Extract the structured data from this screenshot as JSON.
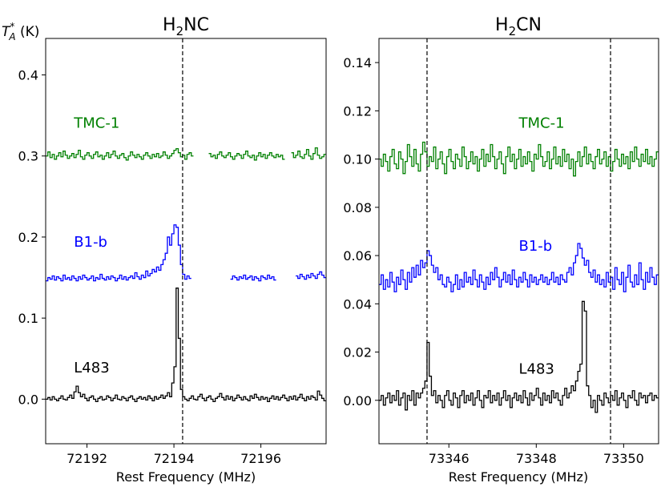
{
  "ylabel": "T*A (K)",
  "xlabel": "Rest Frequency (MHz)",
  "colors": {
    "TMC-1": "#008000",
    "B1-b": "#0000ff",
    "L483": "#000000"
  },
  "panels": [
    {
      "title_main": "H",
      "title_sub": "2",
      "title_rest": "NC",
      "xlim": [
        72191.05,
        72197.5
      ],
      "ylim": [
        -0.055,
        0.445
      ],
      "xticks": [
        "72192",
        "72194",
        "72196"
      ],
      "yticks": [
        "0.0",
        "0.1",
        "0.2",
        "0.3",
        "0.4"
      ],
      "vlines": [
        72194.2
      ],
      "source_labels": [
        {
          "text": "TMC-1",
          "source": "TMC-1",
          "x": 72191.7,
          "y": 0.335
        },
        {
          "text": "B1-b",
          "source": "B1-b",
          "x": 72191.7,
          "y": 0.188
        },
        {
          "text": "L483",
          "source": "L483",
          "x": 72191.7,
          "y": 0.033
        }
      ]
    },
    {
      "title_main": "H",
      "title_sub": "2",
      "title_rest": "CN",
      "xlim": [
        73344.4,
        73350.8
      ],
      "ylim": [
        -0.018,
        0.15
      ],
      "xticks": [
        "73346",
        "73348",
        "73350"
      ],
      "yticks": [
        "0.00",
        "0.02",
        "0.04",
        "0.06",
        "0.08",
        "0.10",
        "0.12",
        "0.14"
      ],
      "vlines": [
        73345.5,
        73349.7
      ],
      "source_labels": [
        {
          "text": "TMC-1",
          "source": "TMC-1",
          "x": 73347.6,
          "y": 0.113
        },
        {
          "text": "B1-b",
          "source": "B1-b",
          "x": 73347.6,
          "y": 0.062
        },
        {
          "text": "L483",
          "source": "L483",
          "x": 73347.6,
          "y": 0.011
        }
      ]
    }
  ],
  "chart_data": [
    {
      "type": "line",
      "title": "H2NC",
      "xlabel": "Rest Frequency (MHz)",
      "ylabel": "T*A (K)",
      "xlim": [
        72191.05,
        72197.5
      ],
      "ylim": [
        -0.055,
        0.445
      ],
      "x_start": 72191.05,
      "x_step": 0.05,
      "series": [
        {
          "name": "TMC-1",
          "segments": [
            [
              0,
              68
            ],
            [
              75,
              110
            ],
            [
              113,
              129
            ]
          ],
          "values": [
            0.3,
            0.305,
            0.298,
            0.302,
            0.296,
            0.3,
            0.304,
            0.299,
            0.306,
            0.301,
            0.297,
            0.3,
            0.303,
            0.298,
            0.302,
            0.307,
            0.299,
            0.296,
            0.301,
            0.304,
            0.3,
            0.297,
            0.302,
            0.305,
            0.299,
            0.301,
            0.296,
            0.3,
            0.304,
            0.298,
            0.302,
            0.306,
            0.3,
            0.297,
            0.301,
            0.303,
            0.298,
            0.295,
            0.3,
            0.305,
            0.301,
            0.298,
            0.302,
            0.299,
            0.296,
            0.301,
            0.304,
            0.3,
            0.297,
            0.302,
            0.299,
            0.303,
            0.298,
            0.3,
            0.305,
            0.301,
            0.297,
            0.3,
            0.303,
            0.307,
            0.309,
            0.304,
            0.299,
            0.301,
            0.296,
            0.302,
            0.304,
            0.3,
            0.298,
            0.301,
            0.3,
            0.3,
            0.3,
            0.3,
            0.3,
            0.303,
            0.299,
            0.301,
            0.297,
            0.302,
            0.305,
            0.3,
            0.298,
            0.301,
            0.304,
            0.299,
            0.296,
            0.3,
            0.303,
            0.301,
            0.297,
            0.302,
            0.306,
            0.3,
            0.298,
            0.301,
            0.295,
            0.3,
            0.304,
            0.299,
            0.302,
            0.297,
            0.301,
            0.304,
            0.3,
            0.298,
            0.302,
            0.299,
            0.301,
            0.296,
            0.3,
            0.3,
            0.3,
            0.304,
            0.298,
            0.301,
            0.306,
            0.299,
            0.297,
            0.302,
            0.308,
            0.3,
            0.296,
            0.303,
            0.31,
            0.301,
            0.297,
            0.299,
            0.302,
            0.3
          ]
        },
        {
          "name": "B1-b",
          "segments": [
            [
              0,
              67
            ],
            [
              85,
              106
            ],
            [
              115,
              129
            ]
          ],
          "values": [
            0.146,
            0.15,
            0.148,
            0.152,
            0.147,
            0.151,
            0.149,
            0.146,
            0.153,
            0.148,
            0.15,
            0.147,
            0.152,
            0.149,
            0.146,
            0.151,
            0.148,
            0.153,
            0.15,
            0.147,
            0.149,
            0.152,
            0.146,
            0.15,
            0.148,
            0.154,
            0.149,
            0.147,
            0.151,
            0.148,
            0.152,
            0.15,
            0.146,
            0.149,
            0.153,
            0.148,
            0.151,
            0.147,
            0.15,
            0.152,
            0.149,
            0.156,
            0.151,
            0.148,
            0.153,
            0.15,
            0.158,
            0.152,
            0.155,
            0.16,
            0.157,
            0.163,
            0.159,
            0.166,
            0.172,
            0.18,
            0.2,
            0.19,
            0.204,
            0.215,
            0.212,
            0.19,
            0.166,
            0.154,
            0.148,
            0.152,
            0.149,
            0.153,
            0.15,
            0.15,
            0.15,
            0.15,
            0.15,
            0.15,
            0.15,
            0.15,
            0.15,
            0.15,
            0.15,
            0.15,
            0.15,
            0.15,
            0.15,
            0.15,
            0.15,
            0.148,
            0.152,
            0.15,
            0.147,
            0.151,
            0.149,
            0.153,
            0.148,
            0.15,
            0.152,
            0.147,
            0.151,
            0.149,
            0.146,
            0.152,
            0.15,
            0.148,
            0.153,
            0.149,
            0.151,
            0.147,
            0.15,
            0.15,
            0.15,
            0.15,
            0.15,
            0.15,
            0.15,
            0.15,
            0.15,
            0.152,
            0.149,
            0.154,
            0.151,
            0.148,
            0.153,
            0.15,
            0.155,
            0.152,
            0.149,
            0.154,
            0.157,
            0.153,
            0.15,
            0.152
          ]
        },
        {
          "name": "L483",
          "segments": [
            [
              0,
              129
            ]
          ],
          "values": [
            0.0,
            0.002,
            -0.001,
            0.003,
            0.0,
            -0.002,
            0.001,
            0.004,
            0.0,
            -0.001,
            0.002,
            0.005,
            0.001,
            0.009,
            0.016,
            0.008,
            0.003,
            0.006,
            0.001,
            -0.002,
            0.002,
            0.004,
            0.0,
            -0.003,
            0.001,
            0.003,
            -0.001,
            0.0,
            0.004,
            0.002,
            -0.002,
            0.001,
            0.005,
            0.0,
            -0.001,
            0.003,
            0.001,
            -0.002,
            0.002,
            0.004,
            0.0,
            -0.003,
            0.001,
            0.003,
            0.0,
            0.002,
            -0.001,
            0.004,
            0.001,
            -0.002,
            0.003,
            0.0,
            0.002,
            0.005,
            0.001,
            0.004,
            0.008,
            0.003,
            0.02,
            0.04,
            0.137,
            0.075,
            0.012,
            0.003,
            0.0,
            -0.002,
            0.001,
            0.004,
            0.0,
            -0.001,
            0.003,
            0.006,
            0.001,
            -0.002,
            0.002,
            0.004,
            0.0,
            -0.003,
            0.001,
            0.003,
            0.007,
            0.002,
            -0.001,
            0.004,
            0.0,
            0.003,
            -0.002,
            0.001,
            0.005,
            0.002,
            -0.001,
            0.003,
            0.0,
            -0.002,
            0.004,
            0.001,
            0.006,
            0.002,
            -0.001,
            0.003,
            0.0,
            0.002,
            -0.003,
            0.001,
            0.004,
            0.0,
            0.003,
            -0.001,
            0.002,
            0.005,
            0.001,
            -0.002,
            0.003,
            0.0,
            0.004,
            -0.001,
            0.002,
            0.006,
            0.001,
            -0.002,
            0.003,
            0.0,
            0.004,
            0.002,
            -0.001,
            0.01,
            0.005,
            0.001,
            -0.002
          ]
        }
      ]
    },
    {
      "type": "line",
      "title": "H2CN",
      "xlabel": "Rest Frequency (MHz)",
      "ylabel": "T*A (K)",
      "xlim": [
        73344.4,
        73350.8
      ],
      "ylim": [
        -0.018,
        0.15
      ],
      "x_start": 73344.4,
      "x_step": 0.05,
      "series": [
        {
          "name": "TMC-1",
          "segments": [
            [
              0,
              128
            ]
          ],
          "values": [
            0.1,
            0.097,
            0.102,
            0.099,
            0.095,
            0.101,
            0.104,
            0.098,
            0.096,
            0.103,
            0.1,
            0.094,
            0.099,
            0.106,
            0.101,
            0.097,
            0.104,
            0.098,
            0.095,
            0.102,
            0.107,
            0.103,
            0.097,
            0.101,
            0.099,
            0.105,
            0.096,
            0.1,
            0.103,
            0.098,
            0.094,
            0.101,
            0.104,
            0.099,
            0.096,
            0.102,
            0.1,
            0.097,
            0.105,
            0.101,
            0.096,
            0.099,
            0.103,
            0.098,
            0.101,
            0.095,
            0.1,
            0.104,
            0.097,
            0.102,
            0.099,
            0.106,
            0.101,
            0.096,
            0.1,
            0.103,
            0.098,
            0.094,
            0.101,
            0.105,
            0.099,
            0.102,
            0.096,
            0.1,
            0.104,
            0.097,
            0.101,
            0.098,
            0.103,
            0.099,
            0.095,
            0.102,
            0.1,
            0.106,
            0.101,
            0.097,
            0.099,
            0.103,
            0.096,
            0.1,
            0.105,
            0.098,
            0.101,
            0.097,
            0.104,
            0.099,
            0.102,
            0.096,
            0.1,
            0.093,
            0.099,
            0.103,
            0.097,
            0.101,
            0.105,
            0.098,
            0.102,
            0.099,
            0.096,
            0.101,
            0.104,
            0.098,
            0.1,
            0.103,
            0.097,
            0.101,
            0.095,
            0.099,
            0.104,
            0.1,
            0.097,
            0.102,
            0.098,
            0.101,
            0.096,
            0.103,
            0.099,
            0.105,
            0.1,
            0.097,
            0.102,
            0.099,
            0.104,
            0.098,
            0.101,
            0.097,
            0.1,
            0.103
          ]
        },
        {
          "name": "B1-b",
          "segments": [
            [
              0,
              128
            ]
          ],
          "values": [
            0.048,
            0.052,
            0.046,
            0.05,
            0.047,
            0.053,
            0.049,
            0.045,
            0.051,
            0.048,
            0.054,
            0.05,
            0.046,
            0.053,
            0.049,
            0.055,
            0.051,
            0.056,
            0.052,
            0.058,
            0.055,
            0.057,
            0.062,
            0.06,
            0.056,
            0.053,
            0.055,
            0.05,
            0.052,
            0.048,
            0.047,
            0.051,
            0.049,
            0.045,
            0.048,
            0.052,
            0.046,
            0.05,
            0.047,
            0.053,
            0.049,
            0.051,
            0.048,
            0.054,
            0.05,
            0.047,
            0.052,
            0.049,
            0.046,
            0.051,
            0.048,
            0.053,
            0.05,
            0.055,
            0.051,
            0.047,
            0.05,
            0.053,
            0.049,
            0.052,
            0.048,
            0.054,
            0.05,
            0.047,
            0.051,
            0.049,
            0.053,
            0.05,
            0.047,
            0.052,
            0.049,
            0.051,
            0.048,
            0.05,
            0.052,
            0.049,
            0.051,
            0.048,
            0.05,
            0.053,
            0.049,
            0.051,
            0.048,
            0.052,
            0.05,
            0.049,
            0.053,
            0.055,
            0.052,
            0.057,
            0.06,
            0.065,
            0.063,
            0.059,
            0.056,
            0.058,
            0.053,
            0.051,
            0.054,
            0.049,
            0.052,
            0.048,
            0.05,
            0.047,
            0.053,
            0.049,
            0.051,
            0.046,
            0.055,
            0.05,
            0.048,
            0.053,
            0.045,
            0.051,
            0.056,
            0.049,
            0.047,
            0.052,
            0.048,
            0.057,
            0.05,
            0.046,
            0.053,
            0.049,
            0.055,
            0.051,
            0.048,
            0.052
          ]
        },
        {
          "name": "L483",
          "segments": [
            [
              0,
              128
            ]
          ],
          "values": [
            0.0,
            0.002,
            -0.002,
            0.001,
            0.003,
            -0.001,
            0.002,
            0.0,
            0.004,
            -0.002,
            0.001,
            0.003,
            -0.004,
            0.002,
            0.0,
            0.004,
            -0.002,
            0.003,
            0.001,
            0.003,
            0.005,
            0.008,
            0.024,
            0.01,
            0.002,
            0.004,
            -0.001,
            0.002,
            0.0,
            -0.003,
            0.002,
            0.004,
            0.0,
            -0.002,
            0.003,
            0.001,
            -0.003,
            0.002,
            0.004,
            -0.001,
            0.002,
            0.0,
            0.003,
            -0.002,
            0.001,
            0.004,
            0.0,
            -0.003,
            0.002,
            0.001,
            0.004,
            -0.001,
            0.002,
            0.0,
            0.003,
            -0.002,
            0.001,
            0.004,
            0.0,
            0.002,
            -0.003,
            0.001,
            0.003,
            0.0,
            0.002,
            -0.001,
            0.004,
            0.001,
            -0.002,
            0.003,
            0.0,
            0.002,
            0.005,
            0.001,
            -0.002,
            0.003,
            0.0,
            0.002,
            -0.001,
            0.004,
            0.001,
            0.003,
            0.0,
            -0.002,
            0.002,
            0.005,
            0.001,
            0.003,
            0.006,
            0.004,
            0.008,
            0.012,
            0.015,
            0.041,
            0.037,
            0.006,
            0.002,
            -0.003,
            0.0,
            -0.005,
            0.002,
            0.0,
            -0.002,
            0.003,
            0.001,
            -0.001,
            0.002,
            0.0,
            0.004,
            -0.002,
            0.001,
            0.003,
            0.0,
            -0.003,
            0.002,
            0.001,
            0.004,
            0.0,
            -0.002,
            0.003,
            0.001,
            0.002,
            -0.001,
            0.002,
            0.003,
            0.0,
            0.002,
            0.001
          ]
        }
      ]
    }
  ]
}
